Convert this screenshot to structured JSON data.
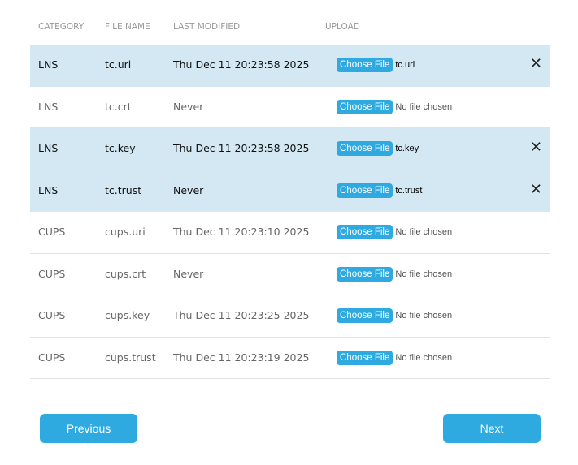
{
  "headers": {
    "category": "CATEGORY",
    "file_name": "FILE NAME",
    "last_modified": "LAST MODIFIED",
    "upload": "UPLOAD"
  },
  "choose_label": "Choose File",
  "rows": [
    {
      "category": "LNS",
      "file": "tc.uri",
      "modified": "Thu Dec 11 20:23:58 2025",
      "chosen": "tc.uri",
      "selected": true
    },
    {
      "category": "LNS",
      "file": "tc.crt",
      "modified": "Never",
      "chosen": "No file chosen",
      "selected": false
    },
    {
      "category": "LNS",
      "file": "tc.key",
      "modified": "Thu Dec 11 20:23:58 2025",
      "chosen": "tc.key",
      "selected": true
    },
    {
      "category": "LNS",
      "file": "tc.trust",
      "modified": "Never",
      "chosen": "tc.trust",
      "selected": true
    },
    {
      "category": "CUPS",
      "file": "cups.uri",
      "modified": "Thu Dec 11 20:23:10 2025",
      "chosen": "No file chosen",
      "selected": false
    },
    {
      "category": "CUPS",
      "file": "cups.crt",
      "modified": "Never",
      "chosen": "No file chosen",
      "selected": false
    },
    {
      "category": "CUPS",
      "file": "cups.key",
      "modified": "Thu Dec 11 20:23:25 2025",
      "chosen": "No file chosen",
      "selected": false
    },
    {
      "category": "CUPS",
      "file": "cups.trust",
      "modified": "Thu Dec 11 20:23:19 2025",
      "chosen": "No file chosen",
      "selected": false
    }
  ],
  "colors": {
    "accent": "#2eaae1",
    "selected_row": "#d3e8f3"
  },
  "nav": {
    "previous": "Previous",
    "next": "Next"
  }
}
